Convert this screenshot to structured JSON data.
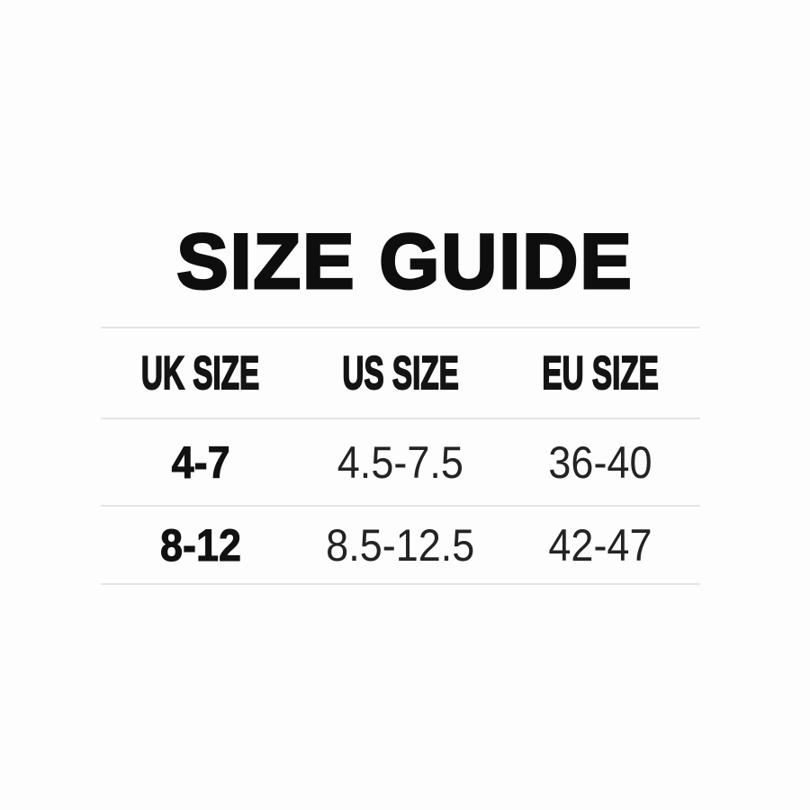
{
  "chart_data": {
    "type": "table",
    "title": "SIZE GUIDE",
    "columns": [
      "UK SIZE",
      "US SIZE",
      "EU SIZE"
    ],
    "rows": [
      [
        "4-7",
        "4.5-7.5",
        "36-40"
      ],
      [
        "8-12",
        "8.5-12.5",
        "42-47"
      ]
    ],
    "layout": {
      "legend": "none",
      "grid": "horizontal-dividers-only",
      "first_column_bold": true
    }
  },
  "style": {
    "background": "#fdfdfd",
    "divider_color": "#e4e4e4",
    "title_color": "#0e0e0e",
    "header_text_color": "#141414",
    "value_text_color": "#232323"
  }
}
